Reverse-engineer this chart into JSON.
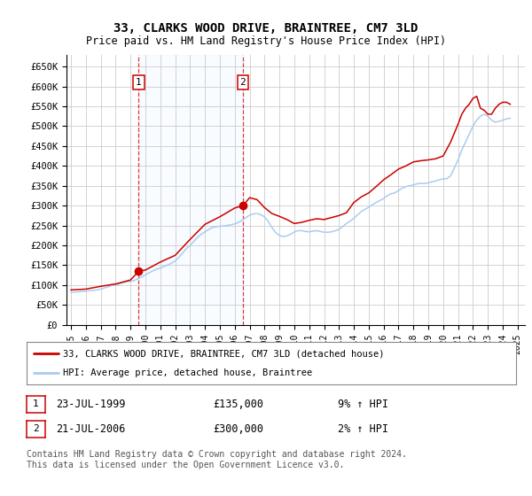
{
  "title": "33, CLARKS WOOD DRIVE, BRAINTREE, CM7 3LD",
  "subtitle": "Price paid vs. HM Land Registry's House Price Index (HPI)",
  "ylim": [
    0,
    680000
  ],
  "yticks": [
    0,
    50000,
    100000,
    150000,
    200000,
    250000,
    300000,
    350000,
    400000,
    450000,
    500000,
    550000,
    600000,
    650000
  ],
  "ytick_labels": [
    "£0",
    "£50K",
    "£100K",
    "£150K",
    "£200K",
    "£250K",
    "£300K",
    "£350K",
    "£400K",
    "£450K",
    "£500K",
    "£550K",
    "£600K",
    "£650K"
  ],
  "xlim_start": 1994.7,
  "xlim_end": 2025.5,
  "xticks": [
    1995,
    1996,
    1997,
    1998,
    1999,
    2000,
    2001,
    2002,
    2003,
    2004,
    2005,
    2006,
    2007,
    2008,
    2009,
    2010,
    2011,
    2012,
    2013,
    2014,
    2015,
    2016,
    2017,
    2018,
    2019,
    2020,
    2021,
    2022,
    2023,
    2024,
    2025
  ],
  "xtick_labels": [
    "1995",
    "1996",
    "1997",
    "1998",
    "1999",
    "2000",
    "2001",
    "2002",
    "2003",
    "2004",
    "2005",
    "2006",
    "2007",
    "2008",
    "2009",
    "2010",
    "2011",
    "2012",
    "2013",
    "2014",
    "2015",
    "2016",
    "2017",
    "2018",
    "2019",
    "2020",
    "2021",
    "2022",
    "2023",
    "2024",
    "2025"
  ],
  "purchase1_x": 1999.55,
  "purchase1_y": 135000,
  "purchase1_label": "1",
  "purchase2_x": 2006.55,
  "purchase2_y": 300000,
  "purchase2_label": "2",
  "span_color": "#ddeeff",
  "plot_bg_color": "#ffffff",
  "grid_color": "#cccccc",
  "red_line_color": "#cc0000",
  "blue_line_color": "#aaccee",
  "legend_line1": "33, CLARKS WOOD DRIVE, BRAINTREE, CM7 3LD (detached house)",
  "legend_line2": "HPI: Average price, detached house, Braintree",
  "table_row1": [
    "1",
    "23-JUL-1999",
    "£135,000",
    "9% ↑ HPI"
  ],
  "table_row2": [
    "2",
    "21-JUL-2006",
    "£300,000",
    "2% ↑ HPI"
  ],
  "footer": "Contains HM Land Registry data © Crown copyright and database right 2024.\nThis data is licensed under the Open Government Licence v3.0.",
  "hpi_years": [
    1995.0,
    1995.25,
    1995.5,
    1995.75,
    1996.0,
    1996.25,
    1996.5,
    1996.75,
    1997.0,
    1997.25,
    1997.5,
    1997.75,
    1998.0,
    1998.25,
    1998.5,
    1998.75,
    1999.0,
    1999.25,
    1999.5,
    1999.75,
    2000.0,
    2000.25,
    2000.5,
    2000.75,
    2001.0,
    2001.25,
    2001.5,
    2001.75,
    2002.0,
    2002.25,
    2002.5,
    2002.75,
    2003.0,
    2003.25,
    2003.5,
    2003.75,
    2004.0,
    2004.25,
    2004.5,
    2004.75,
    2005.0,
    2005.25,
    2005.5,
    2005.75,
    2006.0,
    2006.25,
    2006.5,
    2006.75,
    2007.0,
    2007.25,
    2007.5,
    2007.75,
    2008.0,
    2008.25,
    2008.5,
    2008.75,
    2009.0,
    2009.25,
    2009.5,
    2009.75,
    2010.0,
    2010.25,
    2010.5,
    2010.75,
    2011.0,
    2011.25,
    2011.5,
    2011.75,
    2012.0,
    2012.25,
    2012.5,
    2012.75,
    2013.0,
    2013.25,
    2013.5,
    2013.75,
    2014.0,
    2014.25,
    2014.5,
    2014.75,
    2015.0,
    2015.25,
    2015.5,
    2015.75,
    2016.0,
    2016.25,
    2016.5,
    2016.75,
    2017.0,
    2017.25,
    2017.5,
    2017.75,
    2018.0,
    2018.25,
    2018.5,
    2018.75,
    2019.0,
    2019.25,
    2019.5,
    2019.75,
    2020.0,
    2020.25,
    2020.5,
    2020.75,
    2021.0,
    2021.25,
    2021.5,
    2021.75,
    2022.0,
    2022.25,
    2022.5,
    2022.75,
    2023.0,
    2023.25,
    2023.5,
    2023.75,
    2024.0,
    2024.25,
    2024.5
  ],
  "hpi_values": [
    82000,
    82500,
    83000,
    84000,
    85000,
    86000,
    87000,
    88000,
    90000,
    93000,
    96000,
    99000,
    100000,
    103000,
    106000,
    108000,
    109000,
    112000,
    116000,
    121000,
    126000,
    131000,
    136000,
    140000,
    143000,
    147000,
    151000,
    155000,
    161000,
    170000,
    181000,
    192000,
    200000,
    210000,
    220000,
    228000,
    234000,
    240000,
    245000,
    247000,
    248000,
    249000,
    250000,
    252000,
    254000,
    258000,
    263000,
    270000,
    276000,
    279000,
    280000,
    277000,
    272000,
    260000,
    245000,
    232000,
    225000,
    222000,
    224000,
    228000,
    234000,
    237000,
    237000,
    235000,
    234000,
    236000,
    237000,
    235000,
    233000,
    233000,
    234000,
    237000,
    240000,
    247000,
    255000,
    261000,
    268000,
    277000,
    285000,
    291000,
    296000,
    302000,
    308000,
    313000,
    318000,
    325000,
    330000,
    332000,
    338000,
    344000,
    348000,
    350000,
    352000,
    355000,
    356000,
    356000,
    357000,
    360000,
    362000,
    365000,
    367000,
    368000,
    375000,
    395000,
    415000,
    440000,
    460000,
    480000,
    500000,
    515000,
    525000,
    530000,
    525000,
    515000,
    510000,
    512000,
    515000,
    518000,
    520000
  ],
  "price_years": [
    1995.0,
    1995.5,
    1996.0,
    1997.0,
    1998.0,
    1999.0,
    1999.55,
    2000.0,
    2001.0,
    2002.0,
    2003.0,
    2004.0,
    2005.0,
    2006.0,
    2006.55,
    2007.0,
    2007.5,
    2008.0,
    2008.5,
    2009.0,
    2009.5,
    2010.0,
    2010.5,
    2011.0,
    2011.5,
    2012.0,
    2012.5,
    2013.0,
    2013.5,
    2014.0,
    2014.5,
    2015.0,
    2015.5,
    2016.0,
    2016.5,
    2017.0,
    2017.5,
    2018.0,
    2018.5,
    2019.0,
    2019.5,
    2020.0,
    2020.5,
    2021.0,
    2021.25,
    2021.5,
    2021.75,
    2022.0,
    2022.25,
    2022.5,
    2022.75,
    2023.0,
    2023.25,
    2023.5,
    2023.75,
    2024.0,
    2024.25,
    2024.5
  ],
  "price_values": [
    88000,
    89000,
    90000,
    97000,
    103000,
    113000,
    135000,
    138000,
    158000,
    175000,
    215000,
    253000,
    272000,
    294000,
    300000,
    320000,
    315000,
    295000,
    280000,
    273000,
    265000,
    255000,
    258000,
    263000,
    267000,
    265000,
    270000,
    275000,
    282000,
    308000,
    322000,
    332000,
    348000,
    365000,
    378000,
    392000,
    400000,
    410000,
    413000,
    415000,
    418000,
    425000,
    460000,
    505000,
    530000,
    545000,
    555000,
    570000,
    575000,
    545000,
    540000,
    530000,
    530000,
    545000,
    555000,
    560000,
    560000,
    555000
  ]
}
